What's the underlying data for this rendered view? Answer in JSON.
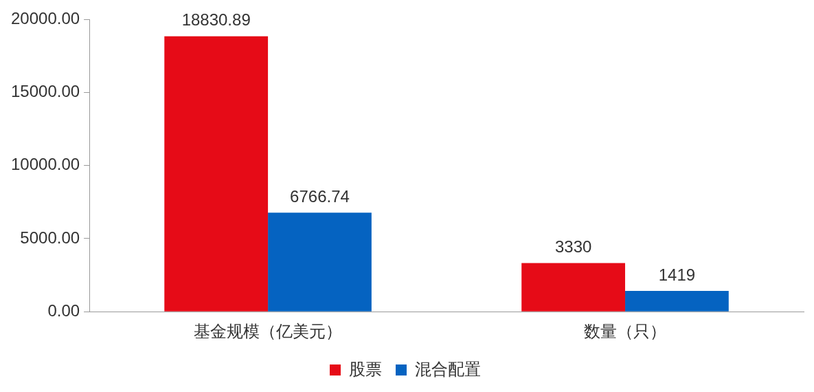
{
  "chart_data": {
    "type": "bar",
    "categories": [
      "基金规模（亿美元）",
      "数量（只）"
    ],
    "series": [
      {
        "name": "股票",
        "color": "#e60b17",
        "values": [
          18830.89,
          3330
        ]
      },
      {
        "name": "混合配置",
        "color": "#0563c1",
        "values": [
          6766.74,
          1419
        ]
      }
    ],
    "ylim": [
      0,
      20000
    ],
    "yticks": [
      {
        "value": 0,
        "label": "0.00"
      },
      {
        "value": 5000,
        "label": "5000.00"
      },
      {
        "value": 10000,
        "label": "10000.00"
      },
      {
        "value": 15000,
        "label": "15000.00"
      },
      {
        "value": 20000,
        "label": "20000.00"
      }
    ],
    "grid": false,
    "legend": "bottom",
    "data_labels": true
  }
}
